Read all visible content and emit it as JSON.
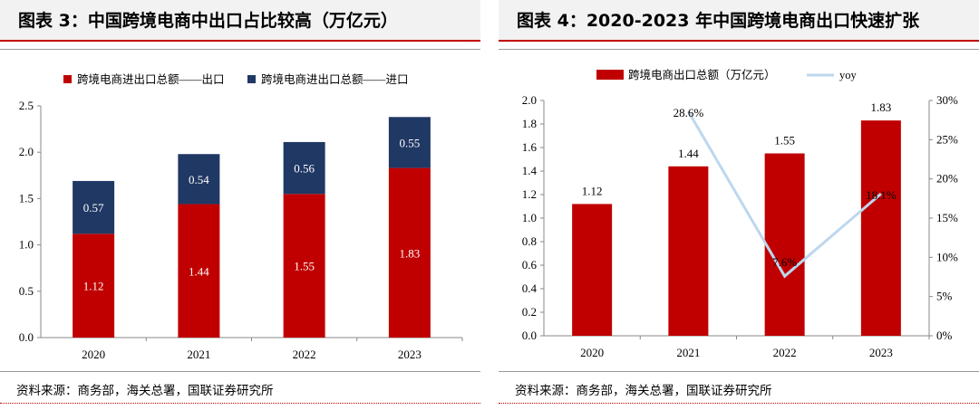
{
  "left": {
    "title": "图表 3：中国跨境电商中出口占比较高（万亿元）",
    "source": "资料来源：商务部，海关总署，国联证券研究所",
    "colors": {
      "export": "#c00000",
      "import": "#203864"
    }
  },
  "right": {
    "title": "图表 4：2020-2023 年中国跨境电商出口快速扩张",
    "source": "资料来源：商务部，海关总署，国联证券研究所",
    "colors": {
      "bar": "#c00000",
      "line": "#bdd7ee"
    }
  },
  "chart_data": [
    {
      "type": "bar",
      "stacked": true,
      "categories": [
        "2020",
        "2021",
        "2022",
        "2023"
      ],
      "series": [
        {
          "name": "跨境电商进出口总额——出口",
          "values": [
            1.12,
            1.44,
            1.55,
            1.83
          ],
          "labels": [
            "1.12",
            "1.44",
            "1.55",
            "1.83"
          ]
        },
        {
          "name": "跨境电商进出口总额——进口",
          "values": [
            0.57,
            0.54,
            0.56,
            0.55
          ],
          "labels": [
            "0.57",
            "0.54",
            "0.56",
            "0.55"
          ]
        }
      ],
      "ylim": [
        0,
        2.5
      ],
      "yticks": [
        "0.0",
        "0.5",
        "1.0",
        "1.5",
        "2.0",
        "2.5"
      ],
      "legend": "top"
    },
    {
      "type": "bar",
      "categories": [
        "2020",
        "2021",
        "2022",
        "2023"
      ],
      "series": [
        {
          "name": "跨境电商出口总额（万亿元）",
          "axis": "left",
          "values": [
            1.12,
            1.44,
            1.55,
            1.83
          ],
          "labels": [
            "1.12",
            "1.44",
            "1.55",
            "1.83"
          ]
        },
        {
          "name": "yoy",
          "type": "line",
          "axis": "right",
          "values": [
            null,
            28.6,
            7.6,
            18.1
          ],
          "labels": [
            "",
            "28.6%",
            "7.6%",
            "18.1%"
          ]
        }
      ],
      "ylim": [
        0,
        2.0
      ],
      "yticks": [
        "0.0",
        "0.2",
        "0.4",
        "0.6",
        "0.8",
        "1.0",
        "1.2",
        "1.4",
        "1.6",
        "1.8",
        "2.0"
      ],
      "y2lim": [
        0,
        30
      ],
      "y2ticks": [
        "0%",
        "5%",
        "10%",
        "15%",
        "20%",
        "25%",
        "30%"
      ],
      "legend": "top"
    }
  ]
}
